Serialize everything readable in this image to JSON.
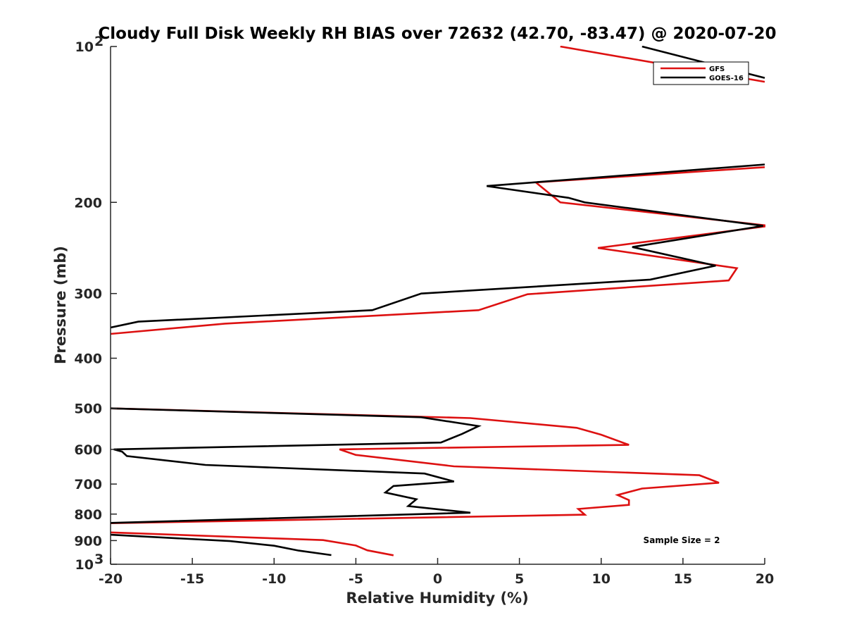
{
  "chart_data": {
    "type": "line",
    "title": "Cloudy Full Disk Weekly RH BIAS over 72632 (42.70, -83.47) @ 2020-07-20",
    "xlabel": "Relative Humidity (%)",
    "ylabel": "Pressure (mb)",
    "xlim": [
      -20,
      20
    ],
    "ylim": [
      100,
      1000
    ],
    "y_scale": "log",
    "y_reversed": true,
    "x_ticks": [
      -20,
      -15,
      -10,
      -5,
      0,
      5,
      10,
      15,
      20
    ],
    "x_tick_labels": [
      "-20",
      "-15",
      "-10",
      "-5",
      "0",
      "5",
      "10",
      "15",
      "20"
    ],
    "y_ticks": [
      100,
      200,
      300,
      400,
      500,
      600,
      700,
      800,
      900,
      1000
    ],
    "y_tick_labels": [
      {
        "base": "10",
        "exp": "2"
      },
      {
        "base": "200",
        "exp": ""
      },
      {
        "base": "300",
        "exp": ""
      },
      {
        "base": "400",
        "exp": ""
      },
      {
        "base": "500",
        "exp": ""
      },
      {
        "base": "600",
        "exp": ""
      },
      {
        "base": "700",
        "exp": ""
      },
      {
        "base": "800",
        "exp": ""
      },
      {
        "base": "900",
        "exp": ""
      },
      {
        "base": "10",
        "exp": "3"
      }
    ],
    "grid": false,
    "legend": "top-right",
    "annotation": "Sample Size = 2",
    "series": [
      {
        "name": "GFS",
        "color": "#dd1111",
        "segments": [
          [
            [
              7.5,
              100
            ],
            [
              20,
              117
            ]
          ],
          [
            [
              20,
              171
            ],
            [
              6,
              183
            ],
            [
              7.5,
              200
            ],
            [
              20.3,
              222
            ],
            [
              9.8,
              245
            ],
            [
              18.3,
              268
            ],
            [
              17.8,
              283
            ],
            [
              5.5,
              301
            ],
            [
              2.5,
              323
            ],
            [
              -13,
              343
            ],
            [
              -20,
              359
            ]
          ],
          [
            [
              -20,
              500
            ],
            [
              2,
              522
            ],
            [
              8.5,
              545
            ],
            [
              10,
              562
            ],
            [
              11.7,
              588
            ],
            [
              -6,
              600
            ],
            [
              -5,
              615
            ],
            [
              1,
              647
            ],
            [
              16,
              673
            ],
            [
              17.2,
              696
            ],
            [
              12.5,
              714
            ],
            [
              11,
              735
            ],
            [
              11.7,
              752
            ],
            [
              11.7,
              768
            ],
            [
              8.6,
              782
            ],
            [
              9,
              802
            ],
            [
              -20,
              833
            ]
          ],
          [
            [
              -20,
              868
            ],
            [
              -7,
              898
            ],
            [
              -5,
              920
            ],
            [
              -4.3,
              940
            ],
            [
              -2.7,
              961
            ]
          ]
        ]
      },
      {
        "name": "GOES-16",
        "color": "#000000",
        "segments": [
          [
            [
              12.5,
              100
            ],
            [
              20,
              115
            ]
          ],
          [
            [
              20,
              169
            ],
            [
              3,
              186
            ],
            [
              8,
              196
            ],
            [
              9,
              200
            ],
            [
              19.9,
              222
            ],
            [
              11.9,
              244
            ],
            [
              17,
              265
            ],
            [
              13,
              282
            ],
            [
              -1,
              300
            ],
            [
              -4,
              323
            ],
            [
              -18.3,
              340
            ],
            [
              -20,
              349
            ]
          ],
          [
            [
              -20,
              500
            ],
            [
              -1,
              520
            ],
            [
              2.5,
              541
            ],
            [
              1.5,
              560
            ],
            [
              0.2,
              582
            ],
            [
              -19.8,
              600
            ],
            [
              -19.3,
              606
            ],
            [
              -19,
              618
            ],
            [
              -14.2,
              643
            ],
            [
              -0.8,
              668
            ],
            [
              1,
              692
            ],
            [
              -2.7,
              706
            ],
            [
              -3.2,
              727
            ],
            [
              -1.3,
              749
            ],
            [
              -1.8,
              772
            ],
            [
              2,
              795
            ],
            [
              -20,
              832
            ]
          ],
          [
            [
              -20,
              877
            ],
            [
              -12.7,
              902
            ],
            [
              -10,
              921
            ],
            [
              -8.5,
              941
            ],
            [
              -6.5,
              960
            ]
          ]
        ]
      }
    ]
  }
}
